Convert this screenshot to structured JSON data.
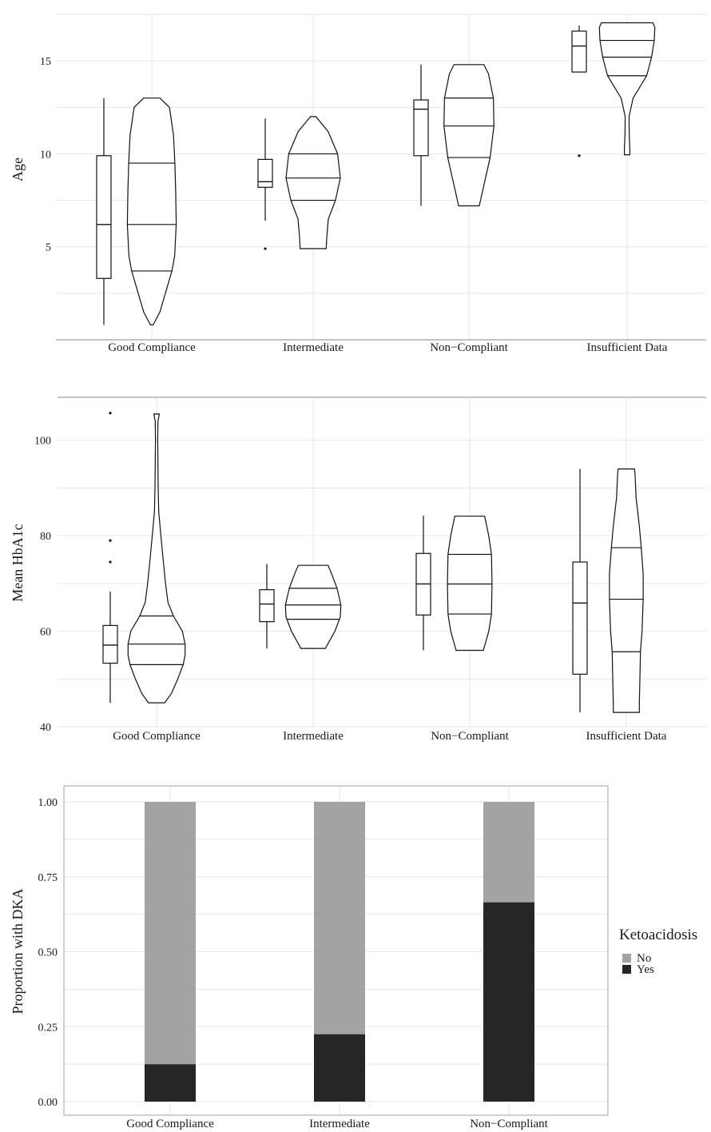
{
  "chart_data": [
    {
      "type": "violin",
      "ylabel": "Age",
      "ylim": [
        0,
        17.5
      ],
      "yticks": [
        5,
        10,
        15
      ],
      "grid": true,
      "categories": [
        "Good Compliance",
        "Intermediate",
        "Non−Compliant",
        "Insufficient Data"
      ],
      "boxes": [
        {
          "category": "Good Compliance",
          "whisker_low": 0.8,
          "q1": 3.3,
          "median": 6.2,
          "q3": 9.9,
          "whisker_high": 13.0,
          "outliers": []
        },
        {
          "category": "Intermediate",
          "whisker_low": 6.4,
          "q1": 8.2,
          "median": 8.5,
          "q3": 9.7,
          "whisker_high": 11.9,
          "outliers": [
            4.9
          ]
        },
        {
          "category": "Non−Compliant",
          "whisker_low": 7.2,
          "q1": 9.9,
          "median": 12.4,
          "q3": 12.9,
          "whisker_high": 14.8,
          "outliers": []
        },
        {
          "category": "Insufficient Data",
          "whisker_low": 14.4,
          "q1": 14.4,
          "median": 15.8,
          "q3": 16.6,
          "whisker_high": 16.9,
          "outliers": [
            9.9
          ]
        }
      ],
      "violins": [
        {
          "category": "Good Compliance",
          "quantile_lines": [
            3.7,
            6.2,
            9.5
          ],
          "profile": [
            [
              0.8,
              0.05
            ],
            [
              1.5,
              0.3
            ],
            [
              2.5,
              0.5
            ],
            [
              3.2,
              0.64
            ],
            [
              3.7,
              0.74
            ],
            [
              4.5,
              0.84
            ],
            [
              6.2,
              0.9
            ],
            [
              8.0,
              0.88
            ],
            [
              9.5,
              0.85
            ],
            [
              11.0,
              0.8
            ],
            [
              12.5,
              0.65
            ],
            [
              13.0,
              0.3
            ]
          ]
        },
        {
          "category": "Intermediate",
          "quantile_lines": [
            7.5,
            8.7,
            10.0
          ],
          "profile": [
            [
              4.9,
              0.48
            ],
            [
              5.5,
              0.5
            ],
            [
              6.5,
              0.56
            ],
            [
              7.5,
              0.82
            ],
            [
              8.7,
              1.0
            ],
            [
              10.0,
              0.9
            ],
            [
              11.2,
              0.55
            ],
            [
              12.0,
              0.1
            ]
          ]
        },
        {
          "category": "Non−Compliant",
          "quantile_lines": [
            9.8,
            11.5,
            13.0
          ],
          "profile": [
            [
              7.2,
              0.38
            ],
            [
              8.5,
              0.58
            ],
            [
              9.8,
              0.78
            ],
            [
              11.5,
              0.92
            ],
            [
              13.0,
              0.9
            ],
            [
              14.3,
              0.72
            ],
            [
              14.8,
              0.55
            ]
          ]
        },
        {
          "category": "Insufficient Data",
          "quantile_lines": [
            14.2,
            15.2,
            16.1
          ],
          "profile": [
            [
              9.95,
              0.1
            ],
            [
              10.3,
              0.1
            ],
            [
              11.0,
              0.08
            ],
            [
              12.0,
              0.07
            ],
            [
              13.0,
              0.22
            ],
            [
              14.2,
              0.72
            ],
            [
              15.2,
              0.9
            ],
            [
              16.1,
              1.0
            ],
            [
              16.8,
              1.02
            ],
            [
              17.05,
              0.95
            ]
          ]
        }
      ]
    },
    {
      "type": "violin",
      "ylabel": "Mean HbA1c",
      "ylim": [
        40,
        109
      ],
      "yticks": [
        40,
        60,
        80,
        100
      ],
      "grid": true,
      "categories": [
        "Good Compliance",
        "Intermediate",
        "Non−Compliant",
        "Insufficient Data"
      ],
      "boxes": [
        {
          "category": "Good Compliance",
          "whisker_low": 45,
          "q1": 53.3,
          "median": 57.1,
          "q3": 61.2,
          "whisker_high": 68.3,
          "outliers": [
            74.5,
            79,
            105.7
          ]
        },
        {
          "category": "Intermediate",
          "whisker_low": 56.4,
          "q1": 62.0,
          "median": 65.7,
          "q3": 68.7,
          "whisker_high": 74.1,
          "outliers": []
        },
        {
          "category": "Non−Compliant",
          "whisker_low": 56.0,
          "q1": 63.4,
          "median": 69.9,
          "q3": 76.3,
          "whisker_high": 84.2,
          "outliers": []
        },
        {
          "category": "Insufficient Data",
          "whisker_low": 43.0,
          "q1": 51.0,
          "median": 65.9,
          "q3": 74.5,
          "whisker_high": 94.0,
          "outliers": []
        }
      ],
      "violins": [
        {
          "category": "Good Compliance",
          "quantile_lines": [
            53.0,
            57.3,
            63.2
          ],
          "profile": [
            [
              45.0,
              0.3
            ],
            [
              47.0,
              0.55
            ],
            [
              50.0,
              0.78
            ],
            [
              53.0,
              0.98
            ],
            [
              55.0,
              1.05
            ],
            [
              57.3,
              1.05
            ],
            [
              60.0,
              0.95
            ],
            [
              63.2,
              0.62
            ],
            [
              66.0,
              0.42
            ],
            [
              70.0,
              0.33
            ],
            [
              75.0,
              0.24
            ],
            [
              80.0,
              0.16
            ],
            [
              85.0,
              0.08
            ],
            [
              90.0,
              0.06
            ],
            [
              95.0,
              0.05
            ],
            [
              100.0,
              0.04
            ],
            [
              104.0,
              0.05
            ],
            [
              105.5,
              0.1
            ]
          ]
        },
        {
          "category": "Intermediate",
          "quantile_lines": [
            62.5,
            65.5,
            69.0
          ],
          "profile": [
            [
              56.4,
              0.45
            ],
            [
              60.0,
              0.8
            ],
            [
              63.0,
              1.0
            ],
            [
              65.5,
              1.02
            ],
            [
              69.0,
              0.88
            ],
            [
              72.0,
              0.68
            ],
            [
              73.8,
              0.55
            ]
          ]
        },
        {
          "category": "Non−Compliant",
          "quantile_lines": [
            63.6,
            69.9,
            76.1
          ],
          "profile": [
            [
              56.0,
              0.5
            ],
            [
              60.0,
              0.7
            ],
            [
              63.6,
              0.8
            ],
            [
              69.9,
              0.82
            ],
            [
              76.1,
              0.8
            ],
            [
              80.0,
              0.7
            ],
            [
              84.1,
              0.55
            ]
          ]
        },
        {
          "category": "Insufficient Data",
          "quantile_lines": [
            55.7,
            66.7,
            77.5
          ],
          "profile": [
            [
              43.0,
              0.48
            ],
            [
              45.0,
              0.48
            ],
            [
              50.0,
              0.5
            ],
            [
              55.7,
              0.52
            ],
            [
              60.0,
              0.58
            ],
            [
              66.7,
              0.62
            ],
            [
              72.0,
              0.62
            ],
            [
              77.5,
              0.55
            ],
            [
              82.0,
              0.48
            ],
            [
              88.0,
              0.36
            ],
            [
              93.0,
              0.32
            ],
            [
              94.0,
              0.3
            ]
          ]
        }
      ]
    },
    {
      "type": "bar",
      "stacked": true,
      "ylabel": "Proportion with DKA",
      "ylim": [
        0,
        1
      ],
      "yticks": [
        "0.00",
        "0.25",
        "0.50",
        "0.75",
        "1.00"
      ],
      "grid": true,
      "categories": [
        "Good Compliance",
        "Intermediate",
        "Non−Compliant"
      ],
      "series": [
        {
          "name": "No",
          "color": "#a3a3a3",
          "values": [
            0.875,
            0.775,
            0.335
          ]
        },
        {
          "name": "Yes",
          "color": "#262626",
          "values": [
            0.125,
            0.225,
            0.665
          ]
        }
      ],
      "legend": {
        "title": "Ketoacidosis",
        "placement": "right"
      }
    }
  ]
}
